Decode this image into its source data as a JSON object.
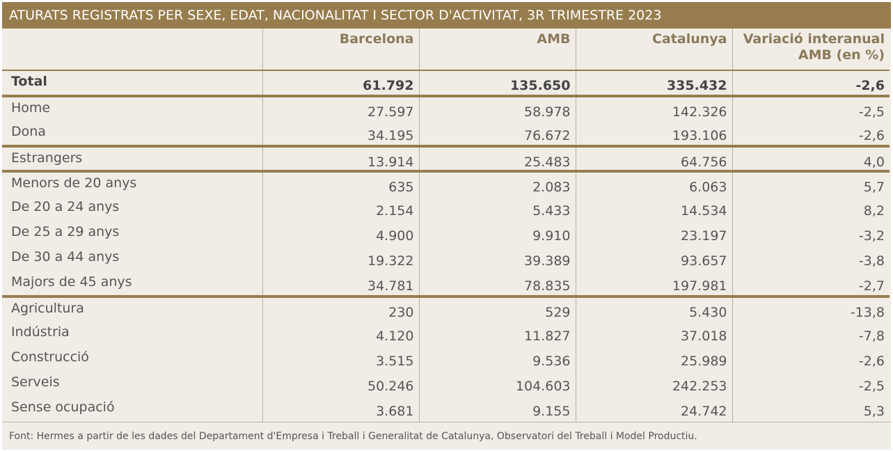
{
  "title": "ATURATS REGISTRATS PER SEXE, EDAT, NACIONALITAT I SECTOR D'ACTIVITAT, 3R TRIMESTRE 2023",
  "columns": [
    "",
    "Barcelona",
    "AMB",
    "Catalunya",
    "Variació interanual AMB (en %)"
  ],
  "rows": [
    {
      "label": "Total",
      "barcelona": "61.792",
      "amb": "135.650",
      "catalunya": "335.432",
      "variacio": "-2,6"
    },
    {
      "label": "Home",
      "barcelona": "27.597",
      "amb": "58.978",
      "catalunya": "142.326",
      "variacio": "-2,5"
    },
    {
      "label": "Dona",
      "barcelona": "34.195",
      "amb": "76.672",
      "catalunya": "193.106",
      "variacio": "-2,6"
    },
    {
      "label": "Estrangers",
      "barcelona": "13.914",
      "amb": "25.483",
      "catalunya": "64.756",
      "variacio": "4,0"
    },
    {
      "label": "Menors de 20 anys",
      "barcelona": "635",
      "amb": "2.083",
      "catalunya": "6.063",
      "variacio": "5,7"
    },
    {
      "label": "De 20 a 24 anys",
      "barcelona": "2.154",
      "amb": "5.433",
      "catalunya": "14.534",
      "variacio": "8,2"
    },
    {
      "label": "De 25 a 29 anys",
      "barcelona": "4.900",
      "amb": "9.910",
      "catalunya": "23.197",
      "variacio": "-3,2"
    },
    {
      "label": "De 30 a 44 anys",
      "barcelona": "19.322",
      "amb": "39.389",
      "catalunya": "93.657",
      "variacio": "-3,8"
    },
    {
      "label": "Majors de 45 anys",
      "barcelona": "34.781",
      "amb": "78.835",
      "catalunya": "197.981",
      "variacio": "-2,7"
    },
    {
      "label": "Agricultura",
      "barcelona": "230",
      "amb": "529",
      "catalunya": "5.430",
      "variacio": "-13,8"
    },
    {
      "label": "Indústria",
      "barcelona": "4.120",
      "amb": "11.827",
      "catalunya": "37.018",
      "variacio": "-7,8"
    },
    {
      "label": "Construcció",
      "barcelona": "3.515",
      "amb": "9.536",
      "catalunya": "25.989",
      "variacio": "-2,6"
    },
    {
      "label": "Serveis",
      "barcelona": "50.246",
      "amb": "104.603",
      "catalunya": "242.253",
      "variacio": "-2,5"
    },
    {
      "label": "Sense ocupació",
      "barcelona": "3.681",
      "amb": "9.155",
      "catalunya": "24.742",
      "variacio": "5,3"
    }
  ],
  "footer": "Font: Hermes a partir de les dades del Departament d'Empresa i Treball i Generalitat de Catalunya, Observatori del Treball i Model Productiu.",
  "colors": {
    "header": "#977d4e",
    "background": "#f1ede6",
    "text": "#555555",
    "column_header_text": "#8a7a5a"
  }
}
